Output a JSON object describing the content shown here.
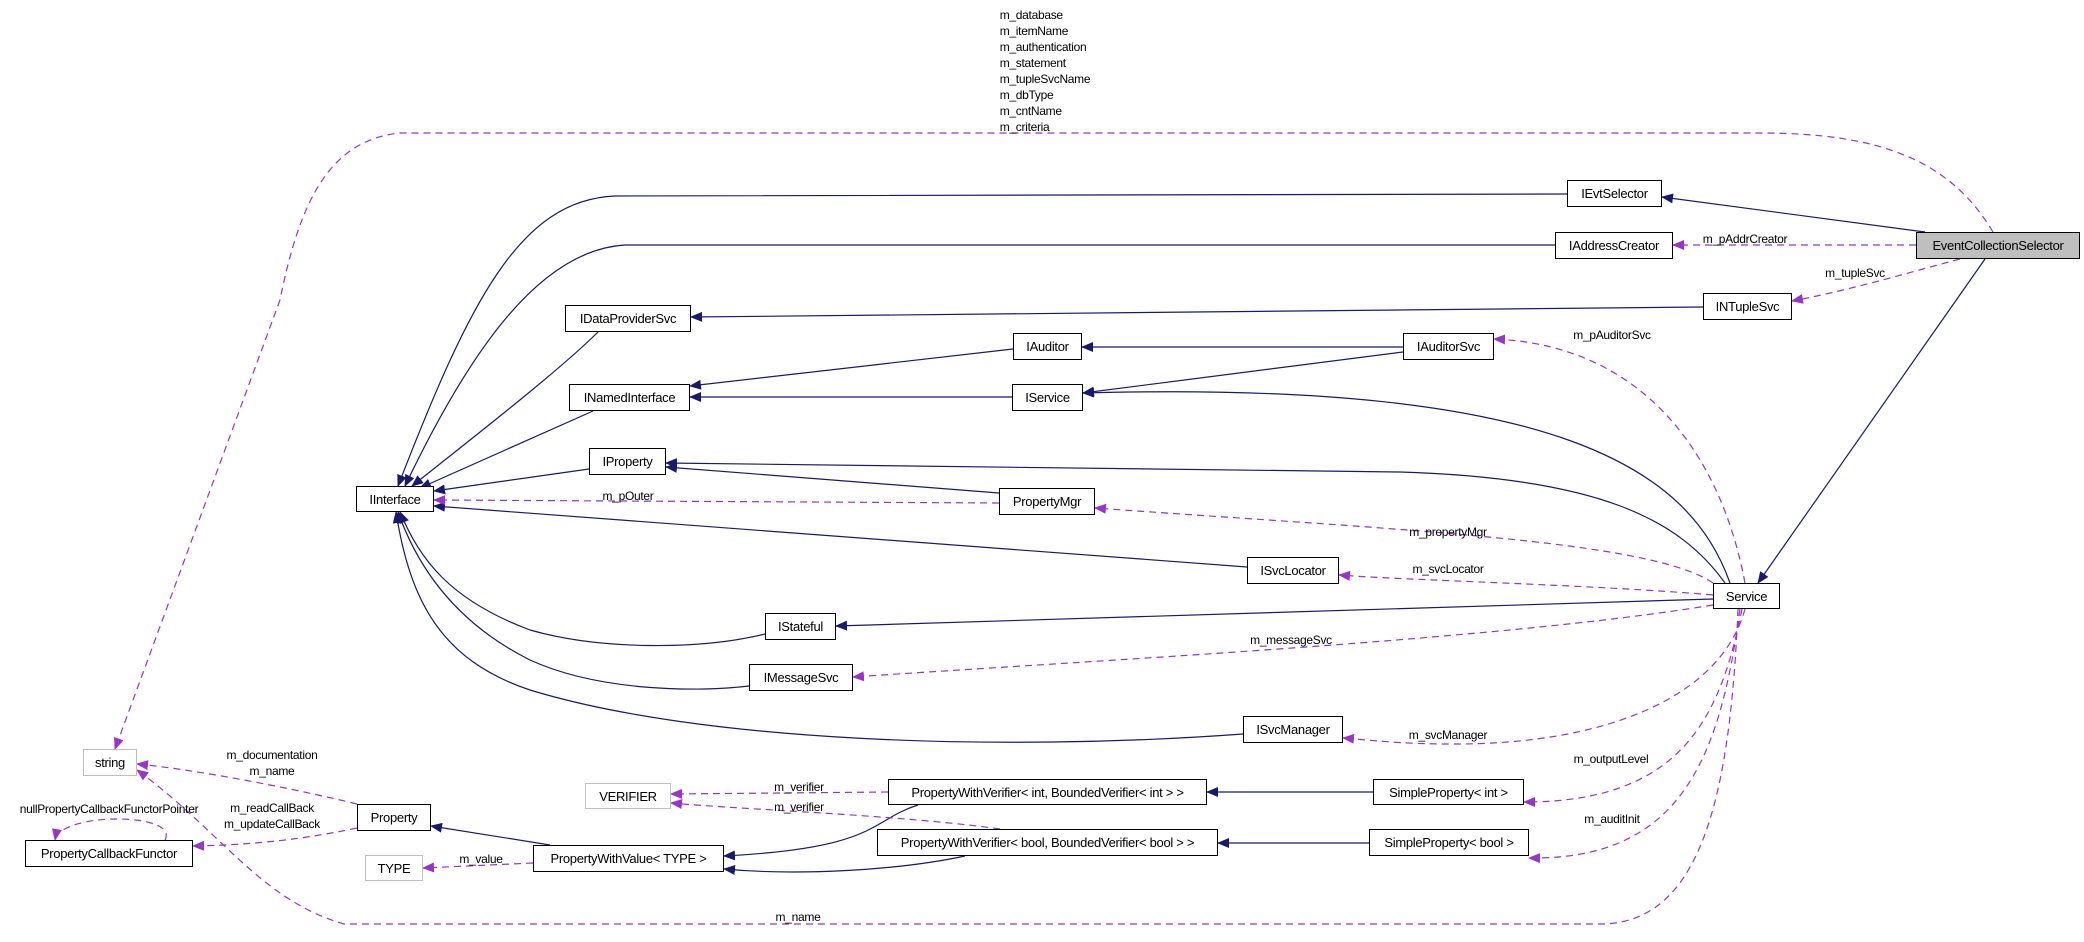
{
  "colors": {
    "inheritance": "#191970",
    "usage": "#9a32cd",
    "root_fill": "#bfbfbf",
    "external_border": "#bfbfbf"
  },
  "nodes": {
    "event_collection_selector": "EventCollectionSelector",
    "ievt_selector": "IEvtSelector",
    "iaddress_creator": "IAddressCreator",
    "intuple_svc": "INTupleSvc",
    "idata_provider_svc": "IDataProviderSvc",
    "iauditor": "IAuditor",
    "iauditor_svc": "IAuditorSvc",
    "inamed_interface": "INamedInterface",
    "iservice": "IService",
    "iproperty": "IProperty",
    "iinterface": "IInterface",
    "property_mgr": "PropertyMgr",
    "isvc_locator": "ISvcLocator",
    "service": "Service",
    "istateful": "IStateful",
    "imessage_svc": "IMessageSvc",
    "isvc_manager": "ISvcManager",
    "string": "string",
    "verifier": "VERIFIER",
    "pwv_int": "PropertyWithVerifier< int, BoundedVerifier< int > >",
    "simple_property_int": "SimpleProperty< int >",
    "property": "Property",
    "property_callback_functor": "PropertyCallbackFunctor",
    "pwv_bool": "PropertyWithVerifier< bool, BoundedVerifier< bool > >",
    "simple_property_bool": "SimpleProperty< bool >",
    "type": "TYPE",
    "property_with_value": "PropertyWithValue< TYPE >"
  },
  "edge_labels": {
    "string_members": [
      "m_database",
      "m_itemName",
      "m_authentication",
      "m_statement",
      "m_tupleSvcName",
      "m_dbType",
      "m_cntName",
      "m_criteria"
    ],
    "addr_creator": "m_pAddrCreator",
    "tuple_svc": "m_tupleSvc",
    "auditor_svc": "m_pAuditorSvc",
    "outer": "m_pOuter",
    "property_mgr": "m_propertyMgr",
    "svc_locator": "m_svcLocator",
    "message_svc": "m_messageSvc",
    "svc_manager": "m_svcManager",
    "output_level": "m_outputLevel",
    "audit_init": "m_auditInit",
    "verifier_int": "m_verifier",
    "verifier_bool": "m_verifier",
    "value": "m_value",
    "name": "m_name",
    "property_string": [
      "m_documentation",
      "m_name"
    ],
    "property_callbacks": [
      "m_readCallBack",
      "m_updateCallBack"
    ],
    "null_pointer": "nullPropertyCallbackFunctorPointer"
  }
}
